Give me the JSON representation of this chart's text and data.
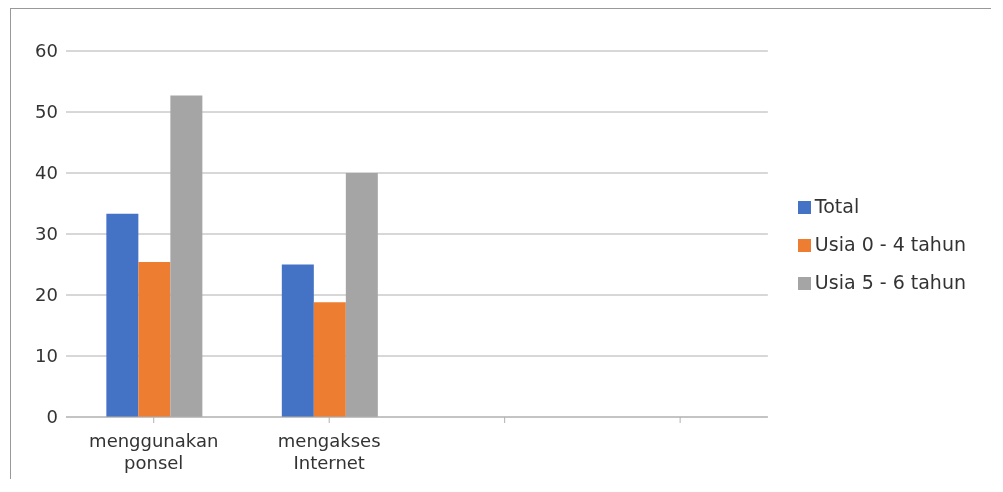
{
  "chart_data": {
    "type": "bar",
    "categories": [
      "menggunakan ponsel",
      "mengakses Internet",
      null,
      null
    ],
    "series": [
      {
        "name": "Total",
        "color": "#4472c4",
        "values": [
          33.3,
          25,
          null,
          null
        ]
      },
      {
        "name": "Usia 0 - 4 tahun",
        "color": "#ed7d31",
        "values": [
          25.4,
          18.8,
          null,
          null
        ]
      },
      {
        "name": "Usia 5 - 6 tahun",
        "color": "#a5a5a5",
        "values": [
          52.7,
          40,
          null,
          null
        ]
      }
    ],
    "ylim": [
      0,
      60
    ],
    "yticks": [
      0,
      10,
      20,
      30,
      40,
      50,
      60
    ],
    "grid": "y",
    "legend": "right"
  }
}
